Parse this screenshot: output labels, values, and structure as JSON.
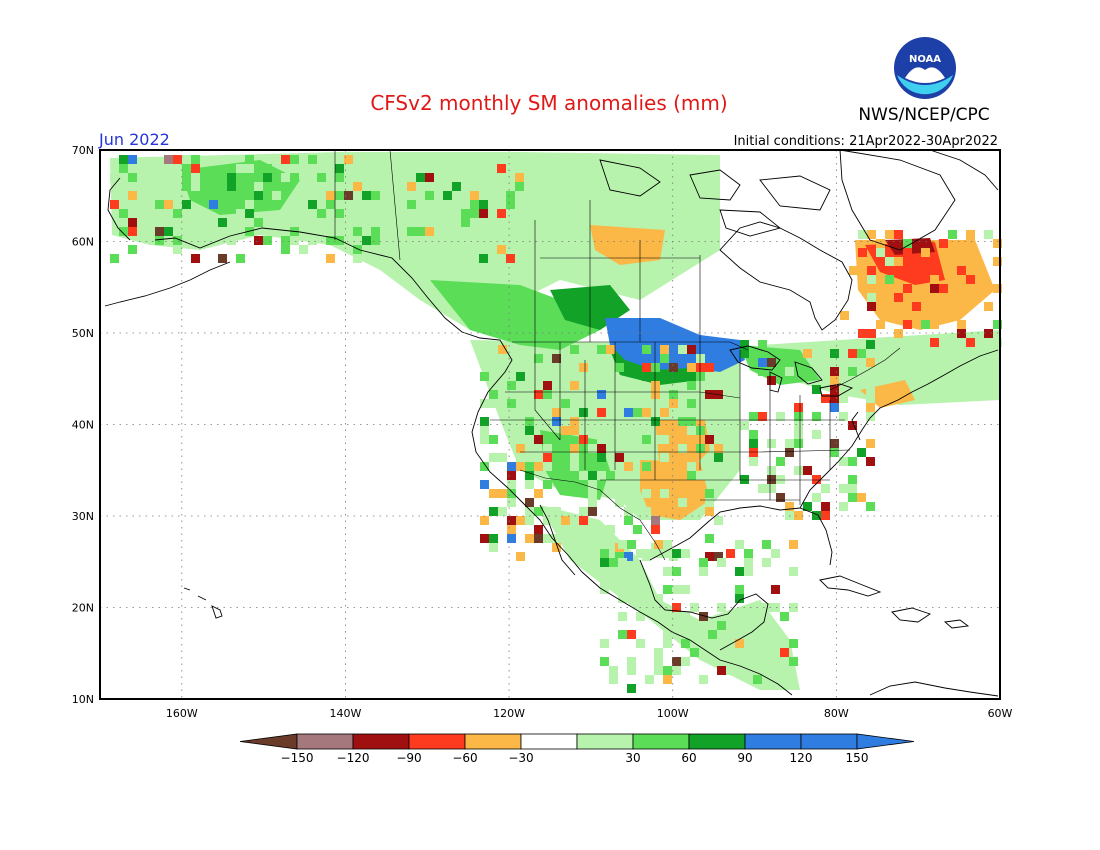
{
  "title": "CFSv2 monthly SM anomalies (mm)",
  "agency": "NWS/NCEP/CPC",
  "logo_text": "NOAA",
  "valid_month": "Jun 2022",
  "initial_conditions": "Initial conditions: 21Apr2022-30Apr2022",
  "map": {
    "lat_ticks": [
      "70N",
      "60N",
      "50N",
      "40N",
      "30N",
      "20N",
      "10N"
    ],
    "lon_ticks": [
      "160W",
      "140W",
      "120W",
      "100W",
      "80W",
      "60W"
    ],
    "lat_range": [
      10,
      70
    ],
    "lon_range": [
      -170,
      -60
    ],
    "gridlines": "dotted"
  },
  "legend": {
    "labels": [
      "-150",
      "-120",
      "-90",
      "-60",
      "-30",
      "30",
      "60",
      "90",
      "120",
      "150"
    ],
    "colors": [
      "#6b3b2a",
      "#a4787c",
      "#a01010",
      "#ff3b1f",
      "#fbb847",
      "#ffffff",
      "#b7f3ad",
      "#5bdd58",
      "#11a227",
      "#2f7de0",
      "#2f7de0",
      "#6b3b2a"
    ]
  },
  "anomaly_regions": [
    {
      "name": "Northern Plains / Southern Prairies",
      "category": "120 to 150",
      "color": "#2f7de0"
    },
    {
      "name": "Western Canada / Rockies",
      "category": "60 to 120",
      "color": "#11a227"
    },
    {
      "name": "Quebec / Labrador",
      "category": "-60 to -30",
      "color": "#fbb847"
    },
    {
      "name": "Northern Quebec core",
      "category": "-90 to -60",
      "color": "#ff3b1f"
    },
    {
      "name": "Central Plains",
      "category": "-60 to -30",
      "color": "#fbb847"
    },
    {
      "name": "Texas / Oklahoma",
      "category": "-60 to -30",
      "color": "#fbb847"
    },
    {
      "name": "Alaska / Yukon",
      "category": "30 to 90",
      "color": "#5bdd58"
    },
    {
      "name": "Mexico",
      "category": "30 to 60",
      "color": "#b7f3ad"
    }
  ]
}
